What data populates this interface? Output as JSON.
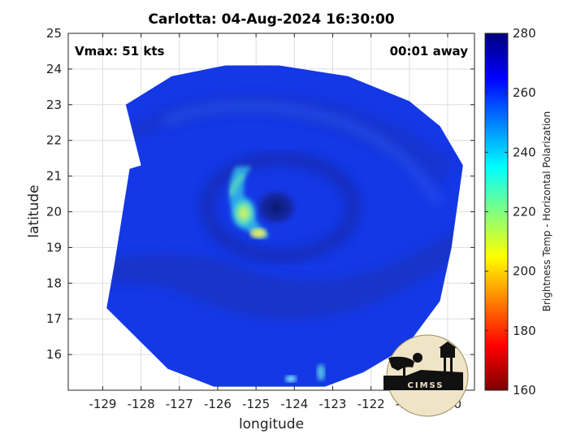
{
  "title": "Carlotta: 04-Aug-2024 16:30:00",
  "annotations": {
    "vmax": "Vmax: 51 kts",
    "time_away": "00:01 away"
  },
  "logo_text": "CIMSS",
  "map": {
    "xlabel": "longitude",
    "ylabel": "latitude",
    "xlim": [
      -129.9,
      -119.3
    ],
    "ylim": [
      15.0,
      25.0
    ],
    "x_ticks": [
      -129,
      -128,
      -127,
      -126,
      -125,
      -124,
      -123,
      -122,
      -121,
      -120
    ],
    "y_ticks": [
      16,
      17,
      18,
      19,
      20,
      21,
      22,
      23,
      24,
      25
    ],
    "grid": true,
    "storm_center": {
      "lon": -124.0,
      "lat": 20.0
    },
    "background_color": "#1438e6",
    "swath_polygon": [
      [
        -128.4,
        23.0
      ],
      [
        -127.2,
        23.8
      ],
      [
        -125.8,
        24.1
      ],
      [
        -124.4,
        24.1
      ],
      [
        -122.6,
        23.8
      ],
      [
        -121.0,
        23.1
      ],
      [
        -120.2,
        22.4
      ],
      [
        -119.6,
        21.3
      ],
      [
        -119.9,
        19.0
      ],
      [
        -120.2,
        17.5
      ],
      [
        -121.1,
        16.2
      ],
      [
        -122.2,
        15.5
      ],
      [
        -123.2,
        15.1
      ],
      [
        -126.1,
        15.1
      ],
      [
        -127.3,
        15.6
      ],
      [
        -128.9,
        17.3
      ],
      [
        -128.8,
        17.9
      ],
      [
        -128.7,
        18.5
      ],
      [
        -128.3,
        21.2
      ],
      [
        -128.0,
        21.3
      ]
    ]
  },
  "colorbar": {
    "label": "Brightness Temp - Horizontal Polarization",
    "min": 160,
    "max": 280,
    "ticks": [
      160,
      180,
      200,
      220,
      240,
      260,
      280
    ],
    "colors": [
      "#7f0000",
      "#ff0000",
      "#ff8000",
      "#ffff00",
      "#80ff80",
      "#00ffff",
      "#0080ff",
      "#0000ff",
      "#00007f"
    ]
  }
}
